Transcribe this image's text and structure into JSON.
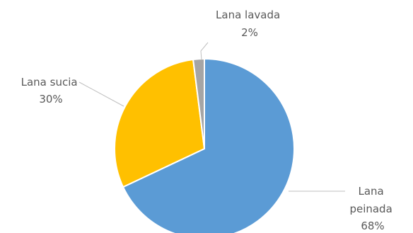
{
  "chart_data": {
    "type": "pie",
    "title": "",
    "slices": [
      {
        "label_lines": [
          "Lana",
          "peinada"
        ],
        "value_label": "68%",
        "value": 68,
        "color": "#5B9BD5"
      },
      {
        "label_lines": [
          "Lana sucia"
        ],
        "value_label": "30%",
        "value": 30,
        "color": "#FFC000"
      },
      {
        "label_lines": [
          "Lana lavada"
        ],
        "value_label": "2%",
        "value": 2,
        "color": "#A5A5A5"
      }
    ],
    "start_angle_deg": 0,
    "direction": "clockwise",
    "legend": "none",
    "leader_line_color": "#BFBFBF"
  }
}
